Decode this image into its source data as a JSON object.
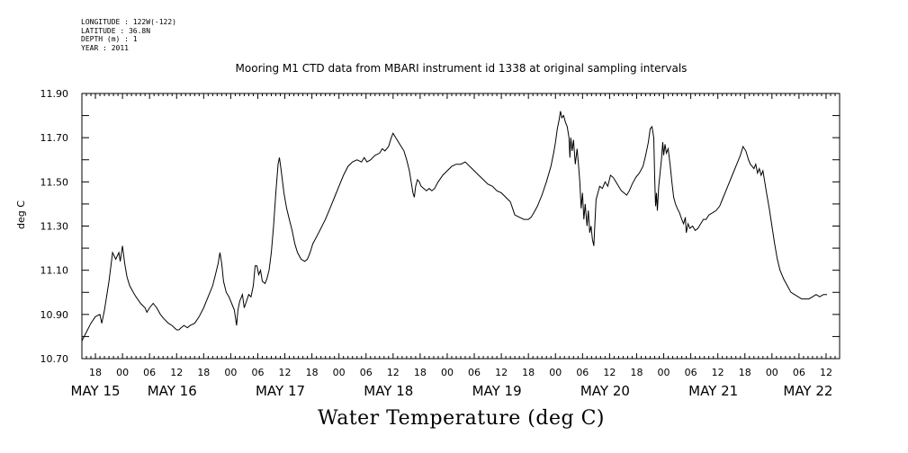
{
  "meta": {
    "longitude": "LONGITUDE : 122W(-122)",
    "latitude": "LATITUDE : 36.8N",
    "depth": "DEPTH (m) : 1",
    "year": "YEAR : 2011"
  },
  "chart_data": {
    "type": "line",
    "title": "Mooring M1 CTD data from MBARI instrument id 1338 at original sampling intervals",
    "xlabel": "Water Temperature (deg C)",
    "ylabel": "deg C",
    "ylim": [
      10.7,
      11.9
    ],
    "yticks": [
      "10.70",
      "10.90",
      "11.10",
      "11.30",
      "11.50",
      "11.70",
      "11.90"
    ],
    "x_unit": "hours since May 15 00:00 (2011)",
    "xlim": [
      -9,
      159
    ],
    "xtick_labels": [
      {
        "t": -6,
        "label": "18"
      },
      {
        "t": 0,
        "label": "00"
      },
      {
        "t": 6,
        "label": "06"
      },
      {
        "t": 12,
        "label": "12"
      },
      {
        "t": 18,
        "label": "18"
      },
      {
        "t": 24,
        "label": "00"
      },
      {
        "t": 30,
        "label": "06"
      },
      {
        "t": 36,
        "label": "12"
      },
      {
        "t": 42,
        "label": "18"
      },
      {
        "t": 48,
        "label": "00"
      },
      {
        "t": 54,
        "label": "06"
      },
      {
        "t": 60,
        "label": "12"
      },
      {
        "t": 66,
        "label": "18"
      },
      {
        "t": 72,
        "label": "00"
      },
      {
        "t": 78,
        "label": "06"
      },
      {
        "t": 84,
        "label": "12"
      },
      {
        "t": 90,
        "label": "18"
      },
      {
        "t": 96,
        "label": "00"
      },
      {
        "t": 102,
        "label": "06"
      },
      {
        "t": 108,
        "label": "12"
      },
      {
        "t": 114,
        "label": "18"
      },
      {
        "t": 120,
        "label": "00"
      },
      {
        "t": 126,
        "label": "06"
      },
      {
        "t": 132,
        "label": "12"
      },
      {
        "t": 138,
        "label": "18"
      },
      {
        "t": 144,
        "label": "00"
      },
      {
        "t": 150,
        "label": "06"
      },
      {
        "t": 156,
        "label": "12"
      }
    ],
    "date_labels": [
      {
        "t": -6,
        "label": "MAY 15"
      },
      {
        "t": 11,
        "label": "MAY 16"
      },
      {
        "t": 35,
        "label": "MAY 17"
      },
      {
        "t": 59,
        "label": "MAY 18"
      },
      {
        "t": 83,
        "label": "MAY 19"
      },
      {
        "t": 107,
        "label": "MAY 20"
      },
      {
        "t": 131,
        "label": "MAY 21"
      },
      {
        "t": 152,
        "label": "MAY 22"
      }
    ],
    "series": [
      {
        "color": "#000000",
        "points": [
          [
            -9.0,
            10.78
          ],
          [
            -8.0,
            10.82
          ],
          [
            -7.0,
            10.86
          ],
          [
            -6.0,
            10.89
          ],
          [
            -5.0,
            10.9
          ],
          [
            -4.6,
            10.86
          ],
          [
            -4.0,
            10.92
          ],
          [
            -3.0,
            11.05
          ],
          [
            -2.2,
            11.18
          ],
          [
            -1.5,
            11.15
          ],
          [
            -0.8,
            11.18
          ],
          [
            -0.5,
            11.14
          ],
          [
            0.0,
            11.21
          ],
          [
            0.5,
            11.13
          ],
          [
            1.0,
            11.07
          ],
          [
            1.6,
            11.03
          ],
          [
            2.4,
            11.0
          ],
          [
            3.0,
            10.98
          ],
          [
            4.0,
            10.95
          ],
          [
            5.0,
            10.93
          ],
          [
            5.4,
            10.91
          ],
          [
            6.0,
            10.93
          ],
          [
            6.8,
            10.95
          ],
          [
            7.6,
            10.93
          ],
          [
            8.4,
            10.9
          ],
          [
            9.2,
            10.88
          ],
          [
            10.2,
            10.86
          ],
          [
            11.0,
            10.85
          ],
          [
            11.5,
            10.84
          ],
          [
            12.0,
            10.83
          ],
          [
            12.5,
            10.83
          ],
          [
            13.0,
            10.84
          ],
          [
            13.6,
            10.85
          ],
          [
            14.4,
            10.84
          ],
          [
            15.0,
            10.85
          ],
          [
            16.0,
            10.86
          ],
          [
            17.0,
            10.89
          ],
          [
            18.0,
            10.93
          ],
          [
            19.0,
            10.98
          ],
          [
            20.0,
            11.03
          ],
          [
            20.6,
            11.08
          ],
          [
            21.2,
            11.13
          ],
          [
            21.6,
            11.18
          ],
          [
            22.0,
            11.13
          ],
          [
            22.4,
            11.05
          ],
          [
            23.0,
            11.0
          ],
          [
            23.6,
            10.98
          ],
          [
            24.0,
            10.96
          ],
          [
            24.4,
            10.94
          ],
          [
            24.8,
            10.92
          ],
          [
            25.3,
            10.85
          ],
          [
            25.6,
            10.92
          ],
          [
            26.0,
            10.96
          ],
          [
            26.6,
            10.99
          ],
          [
            27.0,
            10.93
          ],
          [
            27.5,
            10.96
          ],
          [
            28.0,
            10.99
          ],
          [
            28.5,
            10.98
          ],
          [
            29.0,
            11.03
          ],
          [
            29.4,
            11.12
          ],
          [
            29.8,
            11.12
          ],
          [
            30.2,
            11.08
          ],
          [
            30.6,
            11.1
          ],
          [
            31.0,
            11.05
          ],
          [
            31.6,
            11.04
          ],
          [
            32.0,
            11.06
          ],
          [
            32.5,
            11.1
          ],
          [
            33.0,
            11.18
          ],
          [
            33.5,
            11.3
          ],
          [
            34.0,
            11.45
          ],
          [
            34.5,
            11.58
          ],
          [
            34.8,
            11.61
          ],
          [
            35.2,
            11.55
          ],
          [
            35.8,
            11.45
          ],
          [
            36.4,
            11.38
          ],
          [
            37.0,
            11.33
          ],
          [
            37.6,
            11.28
          ],
          [
            38.2,
            11.22
          ],
          [
            38.8,
            11.18
          ],
          [
            39.6,
            11.15
          ],
          [
            40.4,
            11.14
          ],
          [
            41.0,
            11.15
          ],
          [
            41.6,
            11.18
          ],
          [
            42.2,
            11.22
          ],
          [
            43.0,
            11.25
          ],
          [
            44.0,
            11.29
          ],
          [
            45.0,
            11.33
          ],
          [
            46.0,
            11.38
          ],
          [
            47.0,
            11.43
          ],
          [
            48.0,
            11.48
          ],
          [
            49.0,
            11.53
          ],
          [
            50.0,
            11.57
          ],
          [
            51.0,
            11.59
          ],
          [
            52.0,
            11.6
          ],
          [
            53.0,
            11.59
          ],
          [
            53.6,
            11.61
          ],
          [
            54.2,
            11.59
          ],
          [
            55.0,
            11.6
          ],
          [
            56.0,
            11.62
          ],
          [
            57.0,
            11.63
          ],
          [
            57.6,
            11.65
          ],
          [
            58.2,
            11.64
          ],
          [
            59.0,
            11.66
          ],
          [
            59.6,
            11.7
          ],
          [
            60.0,
            11.72
          ],
          [
            60.6,
            11.7
          ],
          [
            61.2,
            11.68
          ],
          [
            61.8,
            11.66
          ],
          [
            62.4,
            11.64
          ],
          [
            63.0,
            11.6
          ],
          [
            63.6,
            11.55
          ],
          [
            64.0,
            11.5
          ],
          [
            64.4,
            11.45
          ],
          [
            64.7,
            11.43
          ],
          [
            65.0,
            11.48
          ],
          [
            65.4,
            11.51
          ],
          [
            65.8,
            11.5
          ],
          [
            66.2,
            11.48
          ],
          [
            66.8,
            11.47
          ],
          [
            67.4,
            11.46
          ],
          [
            68.0,
            11.47
          ],
          [
            68.6,
            11.46
          ],
          [
            69.2,
            11.47
          ],
          [
            70.0,
            11.5
          ],
          [
            71.0,
            11.53
          ],
          [
            72.0,
            11.55
          ],
          [
            73.0,
            11.57
          ],
          [
            74.0,
            11.58
          ],
          [
            75.0,
            11.58
          ],
          [
            76.0,
            11.59
          ],
          [
            77.0,
            11.57
          ],
          [
            78.0,
            11.55
          ],
          [
            79.0,
            11.53
          ],
          [
            80.0,
            11.51
          ],
          [
            81.0,
            11.49
          ],
          [
            82.0,
            11.48
          ],
          [
            83.0,
            11.46
          ],
          [
            84.0,
            11.45
          ],
          [
            85.0,
            11.43
          ],
          [
            86.0,
            11.41
          ],
          [
            86.5,
            11.38
          ],
          [
            87.0,
            11.35
          ],
          [
            88.0,
            11.34
          ],
          [
            89.0,
            11.33
          ],
          [
            90.0,
            11.33
          ],
          [
            90.6,
            11.34
          ],
          [
            91.2,
            11.36
          ],
          [
            92.0,
            11.39
          ],
          [
            93.0,
            11.44
          ],
          [
            94.0,
            11.5
          ],
          [
            95.0,
            11.57
          ],
          [
            95.6,
            11.63
          ],
          [
            96.0,
            11.68
          ],
          [
            96.4,
            11.74
          ],
          [
            96.8,
            11.78
          ],
          [
            97.1,
            11.82
          ],
          [
            97.4,
            11.79
          ],
          [
            97.8,
            11.8
          ],
          [
            98.2,
            11.77
          ],
          [
            98.6,
            11.75
          ],
          [
            99.0,
            11.7
          ],
          [
            99.2,
            11.61
          ],
          [
            99.4,
            11.7
          ],
          [
            99.7,
            11.64
          ],
          [
            100.0,
            11.69
          ],
          [
            100.4,
            11.58
          ],
          [
            100.8,
            11.65
          ],
          [
            101.1,
            11.58
          ],
          [
            101.4,
            11.5
          ],
          [
            101.7,
            11.38
          ],
          [
            102.0,
            11.45
          ],
          [
            102.3,
            11.33
          ],
          [
            102.6,
            11.4
          ],
          [
            103.0,
            11.3
          ],
          [
            103.3,
            11.37
          ],
          [
            103.6,
            11.27
          ],
          [
            103.9,
            11.3
          ],
          [
            104.2,
            11.24
          ],
          [
            104.5,
            11.21
          ],
          [
            104.8,
            11.34
          ],
          [
            105.0,
            11.42
          ],
          [
            105.4,
            11.45
          ],
          [
            105.8,
            11.48
          ],
          [
            106.4,
            11.47
          ],
          [
            107.0,
            11.5
          ],
          [
            107.6,
            11.48
          ],
          [
            108.2,
            11.53
          ],
          [
            108.8,
            11.52
          ],
          [
            109.4,
            11.5
          ],
          [
            110.0,
            11.48
          ],
          [
            110.6,
            11.46
          ],
          [
            111.2,
            11.45
          ],
          [
            111.8,
            11.44
          ],
          [
            112.4,
            11.46
          ],
          [
            113.0,
            11.49
          ],
          [
            113.8,
            11.52
          ],
          [
            114.6,
            11.54
          ],
          [
            115.4,
            11.57
          ],
          [
            116.0,
            11.62
          ],
          [
            116.6,
            11.68
          ],
          [
            117.0,
            11.74
          ],
          [
            117.4,
            11.75
          ],
          [
            117.8,
            11.7
          ],
          [
            118.0,
            11.52
          ],
          [
            118.2,
            11.39
          ],
          [
            118.4,
            11.45
          ],
          [
            118.6,
            11.37
          ],
          [
            118.9,
            11.48
          ],
          [
            119.2,
            11.54
          ],
          [
            119.5,
            11.6
          ],
          [
            119.8,
            11.68
          ],
          [
            120.0,
            11.62
          ],
          [
            120.3,
            11.67
          ],
          [
            120.6,
            11.63
          ],
          [
            121.0,
            11.65
          ],
          [
            121.4,
            11.58
          ],
          [
            121.8,
            11.5
          ],
          [
            122.2,
            11.43
          ],
          [
            122.6,
            11.4
          ],
          [
            123.0,
            11.38
          ],
          [
            123.5,
            11.36
          ],
          [
            124.0,
            11.33
          ],
          [
            124.4,
            11.31
          ],
          [
            124.8,
            11.34
          ],
          [
            125.0,
            11.27
          ],
          [
            125.4,
            11.31
          ],
          [
            125.8,
            11.29
          ],
          [
            126.4,
            11.3
          ],
          [
            127.0,
            11.28
          ],
          [
            127.6,
            11.29
          ],
          [
            128.2,
            11.31
          ],
          [
            128.8,
            11.33
          ],
          [
            129.4,
            11.33
          ],
          [
            130.0,
            11.35
          ],
          [
            130.8,
            11.36
          ],
          [
            131.6,
            11.37
          ],
          [
            132.4,
            11.39
          ],
          [
            133.0,
            11.42
          ],
          [
            133.8,
            11.46
          ],
          [
            134.6,
            11.5
          ],
          [
            135.4,
            11.54
          ],
          [
            136.2,
            11.58
          ],
          [
            137.0,
            11.62
          ],
          [
            137.6,
            11.66
          ],
          [
            138.2,
            11.64
          ],
          [
            138.8,
            11.6
          ],
          [
            139.2,
            11.58
          ],
          [
            139.6,
            11.57
          ],
          [
            140.0,
            11.56
          ],
          [
            140.4,
            11.58
          ],
          [
            140.8,
            11.54
          ],
          [
            141.2,
            11.56
          ],
          [
            141.6,
            11.53
          ],
          [
            142.0,
            11.55
          ],
          [
            142.4,
            11.5
          ],
          [
            142.8,
            11.45
          ],
          [
            143.4,
            11.38
          ],
          [
            144.0,
            11.3
          ],
          [
            144.6,
            11.22
          ],
          [
            145.2,
            11.15
          ],
          [
            145.8,
            11.1
          ],
          [
            146.6,
            11.06
          ],
          [
            147.4,
            11.03
          ],
          [
            148.2,
            11.0
          ],
          [
            149.0,
            10.99
          ],
          [
            149.8,
            10.98
          ],
          [
            150.6,
            10.97
          ],
          [
            151.4,
            10.97
          ],
          [
            152.2,
            10.97
          ],
          [
            153.0,
            10.98
          ],
          [
            153.8,
            10.99
          ],
          [
            154.6,
            10.98
          ],
          [
            155.4,
            10.99
          ],
          [
            156.2,
            10.99
          ]
        ]
      }
    ]
  }
}
